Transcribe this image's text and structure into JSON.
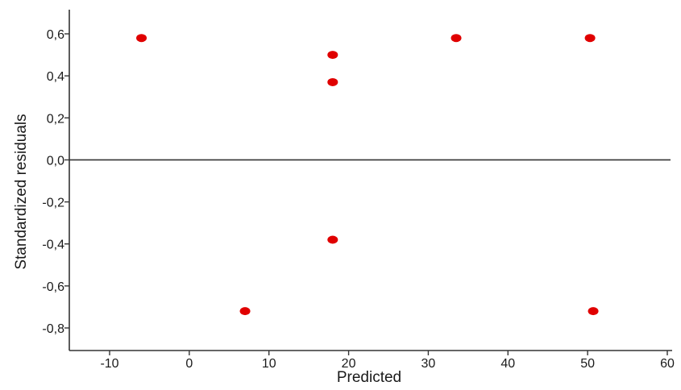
{
  "chart_data": {
    "type": "scatter",
    "title": "",
    "xlabel": "Predicted",
    "ylabel": "Standardized residuals",
    "xlim": [
      -15,
      60
    ],
    "ylim": [
      -0.9,
      0.7
    ],
    "x_ticks": [
      -10,
      0,
      10,
      20,
      30,
      40,
      50,
      60
    ],
    "x_tick_labels": [
      "-10",
      "0",
      "10",
      "20",
      "30",
      "40",
      "50",
      "60"
    ],
    "y_ticks": [
      0.6,
      0.4,
      0.2,
      0.0,
      -0.2,
      -0.4,
      -0.6,
      -0.8
    ],
    "y_tick_labels": [
      "0,6",
      "0,4",
      "0,2",
      "0,0",
      "-0,2",
      "-0,4",
      "-0,6",
      "-0,8"
    ],
    "reference_line_y": 0.0,
    "grid": false,
    "series": [
      {
        "color": "#e00000",
        "points": [
          {
            "x": -6,
            "y": 0.58
          },
          {
            "x": 18,
            "y": 0.5
          },
          {
            "x": 18,
            "y": 0.37
          },
          {
            "x": 33.5,
            "y": 0.58
          },
          {
            "x": 50.3,
            "y": 0.58
          },
          {
            "x": 18,
            "y": -0.38
          },
          {
            "x": 7,
            "y": -0.72
          },
          {
            "x": 50.7,
            "y": -0.72
          }
        ]
      }
    ],
    "colors": {
      "axis": "#333333",
      "zero_line": "#333333",
      "points": "#e00000"
    }
  }
}
